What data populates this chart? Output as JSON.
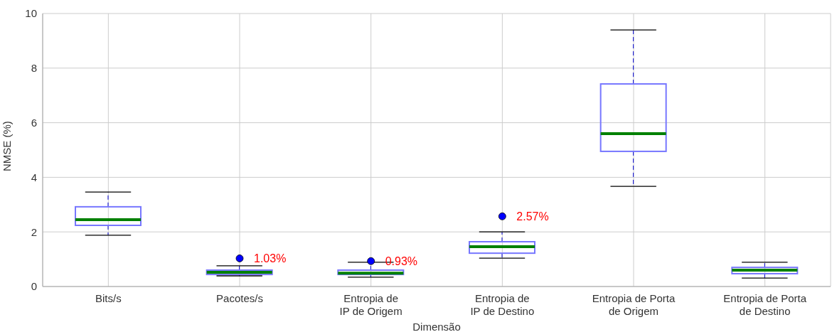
{
  "chart_data": {
    "type": "box",
    "xlabel": "Dimensão",
    "ylabel": "NMSE (%)",
    "categories": [
      "Bits/s",
      "Pacotes/s",
      "Entropia de\nIP de Origem",
      "Entropia de\nIP de Destino",
      "Entropia de Porta\nde Origem",
      "Entropia de Porta\nde Destino"
    ],
    "boxes": [
      {
        "low": 1.88,
        "q1": 2.24,
        "median": 2.45,
        "q3": 2.92,
        "high": 3.46
      },
      {
        "low": 0.39,
        "q1": 0.44,
        "median": 0.52,
        "q3": 0.6,
        "high": 0.76,
        "outliers": [
          1.03
        ]
      },
      {
        "low": 0.34,
        "q1": 0.44,
        "median": 0.49,
        "q3": 0.6,
        "high": 0.89,
        "outliers": [
          0.93
        ]
      },
      {
        "low": 1.04,
        "q1": 1.22,
        "median": 1.46,
        "q3": 1.64,
        "high": 2.0,
        "outliers": [
          2.57
        ]
      },
      {
        "low": 3.67,
        "q1": 4.95,
        "median": 5.6,
        "q3": 7.42,
        "high": 9.4
      },
      {
        "low": 0.31,
        "q1": 0.47,
        "median": 0.6,
        "q3": 0.7,
        "high": 0.89
      }
    ],
    "color": "#7777ff",
    "ylim": [
      0,
      10
    ],
    "yticks": [
      0,
      2,
      4,
      6,
      8,
      10
    ],
    "grid": true,
    "annotations": [
      "1.03%",
      "0.93%",
      "2.57%"
    ]
  }
}
